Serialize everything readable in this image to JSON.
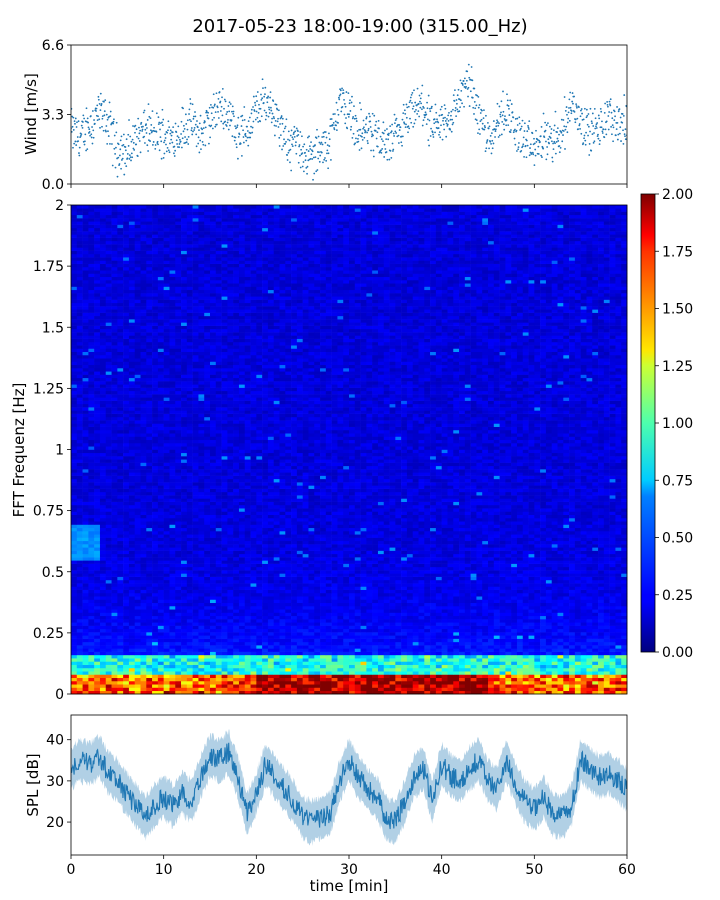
{
  "chart_data": [
    {
      "type": "scatter",
      "title": "2017-05-23 18:00-19:00 (315.00_Hz)",
      "ylabel": "Wind [m/s]",
      "xlim": [
        0,
        60
      ],
      "ylim": [
        0,
        6.6
      ],
      "yticks": [
        "0.0",
        "3.3",
        "6.6"
      ],
      "color": "#1f77b4",
      "trend": [
        {
          "x": 0,
          "y": 2.6
        },
        {
          "x": 1,
          "y": 2.2
        },
        {
          "x": 2,
          "y": 2.8
        },
        {
          "x": 3,
          "y": 3.4
        },
        {
          "x": 4,
          "y": 2.9
        },
        {
          "x": 5,
          "y": 1.7
        },
        {
          "x": 6,
          "y": 1.5
        },
        {
          "x": 7,
          "y": 2.1
        },
        {
          "x": 8,
          "y": 2.6
        },
        {
          "x": 9,
          "y": 2.3
        },
        {
          "x": 10,
          "y": 2.4
        },
        {
          "x": 11,
          "y": 2.1
        },
        {
          "x": 12,
          "y": 2.5
        },
        {
          "x": 13,
          "y": 2.9
        },
        {
          "x": 14,
          "y": 2.3
        },
        {
          "x": 15,
          "y": 3.0
        },
        {
          "x": 16,
          "y": 3.7
        },
        {
          "x": 17,
          "y": 3.4
        },
        {
          "x": 18,
          "y": 2.4
        },
        {
          "x": 19,
          "y": 2.6
        },
        {
          "x": 20,
          "y": 3.4
        },
        {
          "x": 21,
          "y": 4.0
        },
        {
          "x": 22,
          "y": 3.5
        },
        {
          "x": 23,
          "y": 2.0
        },
        {
          "x": 24,
          "y": 2.0
        },
        {
          "x": 25,
          "y": 1.6
        },
        {
          "x": 26,
          "y": 1.2
        },
        {
          "x": 27,
          "y": 1.6
        },
        {
          "x": 28,
          "y": 2.1
        },
        {
          "x": 29,
          "y": 4.0
        },
        {
          "x": 30,
          "y": 3.4
        },
        {
          "x": 31,
          "y": 2.5
        },
        {
          "x": 32,
          "y": 2.6
        },
        {
          "x": 33,
          "y": 2.3
        },
        {
          "x": 34,
          "y": 1.8
        },
        {
          "x": 35,
          "y": 2.2
        },
        {
          "x": 36,
          "y": 2.8
        },
        {
          "x": 37,
          "y": 3.4
        },
        {
          "x": 38,
          "y": 3.8
        },
        {
          "x": 39,
          "y": 2.4
        },
        {
          "x": 40,
          "y": 2.9
        },
        {
          "x": 41,
          "y": 3.2
        },
        {
          "x": 42,
          "y": 4.2
        },
        {
          "x": 43,
          "y": 4.8
        },
        {
          "x": 44,
          "y": 3.4
        },
        {
          "x": 45,
          "y": 2.3
        },
        {
          "x": 46,
          "y": 2.8
        },
        {
          "x": 47,
          "y": 3.6
        },
        {
          "x": 48,
          "y": 2.5
        },
        {
          "x": 49,
          "y": 2.0
        },
        {
          "x": 50,
          "y": 1.6
        },
        {
          "x": 51,
          "y": 2.2
        },
        {
          "x": 52,
          "y": 2.0
        },
        {
          "x": 53,
          "y": 2.6
        },
        {
          "x": 54,
          "y": 3.8
        },
        {
          "x": 55,
          "y": 3.1
        },
        {
          "x": 56,
          "y": 2.4
        },
        {
          "x": 57,
          "y": 2.6
        },
        {
          "x": 58,
          "y": 3.2
        },
        {
          "x": 59,
          "y": 3.0
        },
        {
          "x": 60,
          "y": 2.8
        }
      ]
    },
    {
      "type": "heatmap",
      "ylabel": "FFT Frequenz [Hz]",
      "xlim": [
        0,
        60
      ],
      "ylim": [
        0,
        2
      ],
      "yticks": [
        "0",
        "0.25",
        "0.5",
        "0.75",
        "1",
        "1.25",
        "1.5",
        "1.75",
        "2"
      ],
      "colormap": "jet",
      "colorbar": {
        "min": 0,
        "max": 2,
        "ticks": [
          "0.00",
          "0.25",
          "0.50",
          "0.75",
          "1.00",
          "1.25",
          "1.50",
          "1.75",
          "2.00"
        ]
      }
    },
    {
      "type": "line",
      "ylabel": "SPL [dB]",
      "xlabel": "time [min]",
      "xlim": [
        0,
        60
      ],
      "ylim": [
        12,
        46
      ],
      "yticks": [
        "20",
        "30",
        "40"
      ],
      "xticks": [
        "0",
        "10",
        "20",
        "30",
        "40",
        "50",
        "60"
      ],
      "color": "#1f77b4",
      "trend": [
        {
          "x": 0,
          "y": 33
        },
        {
          "x": 1,
          "y": 35
        },
        {
          "x": 2,
          "y": 34
        },
        {
          "x": 3,
          "y": 36
        },
        {
          "x": 4,
          "y": 32
        },
        {
          "x": 5,
          "y": 30
        },
        {
          "x": 6,
          "y": 27
        },
        {
          "x": 7,
          "y": 24
        },
        {
          "x": 8,
          "y": 21
        },
        {
          "x": 9,
          "y": 24
        },
        {
          "x": 10,
          "y": 26
        },
        {
          "x": 11,
          "y": 24
        },
        {
          "x": 12,
          "y": 27
        },
        {
          "x": 13,
          "y": 25
        },
        {
          "x": 14,
          "y": 31
        },
        {
          "x": 15,
          "y": 36
        },
        {
          "x": 16,
          "y": 35
        },
        {
          "x": 17,
          "y": 37
        },
        {
          "x": 18,
          "y": 31
        },
        {
          "x": 19,
          "y": 22
        },
        {
          "x": 20,
          "y": 27
        },
        {
          "x": 21,
          "y": 34
        },
        {
          "x": 22,
          "y": 31
        },
        {
          "x": 23,
          "y": 28
        },
        {
          "x": 24,
          "y": 25
        },
        {
          "x": 25,
          "y": 21
        },
        {
          "x": 26,
          "y": 20
        },
        {
          "x": 27,
          "y": 21
        },
        {
          "x": 28,
          "y": 22
        },
        {
          "x": 29,
          "y": 30
        },
        {
          "x": 30,
          "y": 35
        },
        {
          "x": 31,
          "y": 31
        },
        {
          "x": 32,
          "y": 28
        },
        {
          "x": 33,
          "y": 26
        },
        {
          "x": 34,
          "y": 21
        },
        {
          "x": 35,
          "y": 20
        },
        {
          "x": 36,
          "y": 25
        },
        {
          "x": 37,
          "y": 31
        },
        {
          "x": 38,
          "y": 33
        },
        {
          "x": 39,
          "y": 25
        },
        {
          "x": 40,
          "y": 34
        },
        {
          "x": 41,
          "y": 31
        },
        {
          "x": 42,
          "y": 30
        },
        {
          "x": 43,
          "y": 33
        },
        {
          "x": 44,
          "y": 35
        },
        {
          "x": 45,
          "y": 30
        },
        {
          "x": 46,
          "y": 28
        },
        {
          "x": 47,
          "y": 35
        },
        {
          "x": 48,
          "y": 29
        },
        {
          "x": 49,
          "y": 25
        },
        {
          "x": 50,
          "y": 23
        },
        {
          "x": 51,
          "y": 26
        },
        {
          "x": 52,
          "y": 22
        },
        {
          "x": 53,
          "y": 21
        },
        {
          "x": 54,
          "y": 24
        },
        {
          "x": 55,
          "y": 35
        },
        {
          "x": 56,
          "y": 33
        },
        {
          "x": 57,
          "y": 31
        },
        {
          "x": 58,
          "y": 32
        },
        {
          "x": 59,
          "y": 30
        },
        {
          "x": 60,
          "y": 28
        }
      ]
    }
  ]
}
